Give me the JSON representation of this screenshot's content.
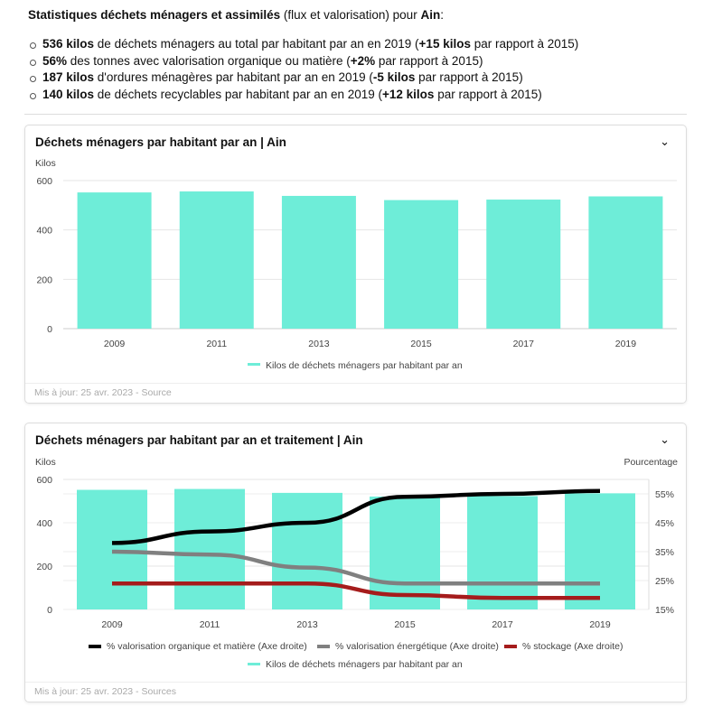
{
  "intro": {
    "bold1": "Statistiques déchets ménagers et assimilés",
    "rest": " (flux et valorisation) pour ",
    "place": "Ain",
    "colon": ":"
  },
  "bullets": [
    {
      "b1": "536 kilos",
      "t1": " de déchets ménagers au total par habitant par an en 2019 (",
      "b2": "+15 kilos",
      "t2": " par rapport à 2015)"
    },
    {
      "b1": "56%",
      "t1": " des tonnes avec valorisation organique ou matière (",
      "b2": "+2%",
      "t2": " par rapport à 2015)"
    },
    {
      "b1": "187 kilos",
      "t1": " d'ordures ménagères par habitant par an en 2019 (",
      "b2": "-5 kilos",
      "t2": " par rapport à 2015)"
    },
    {
      "b1": "140 kilos",
      "t1": " de déchets recyclables par habitant par an en 2019 (",
      "b2": "+12 kilos",
      "t2": " par rapport à 2015)"
    }
  ],
  "card1": {
    "title": "Déchets ménagers par habitant par an | Ain",
    "footer": "Mis à jour: 25 avr. 2023 - Source"
  },
  "card2": {
    "title": "Déchets ménagers par habitant par an et traitement | Ain",
    "footer": "Mis à jour: 25 avr. 2023 - Sources"
  },
  "chart_data": [
    {
      "type": "bar",
      "ylabel": "Kilos",
      "ylim": [
        0,
        600
      ],
      "yticks": [
        0,
        200,
        400,
        600
      ],
      "grid": true,
      "legend": "bottom",
      "categories": [
        "2009",
        "2011",
        "2013",
        "2015",
        "2017",
        "2019"
      ],
      "series": [
        {
          "name": "Kilos de déchets ménagers par habitant par an",
          "color": "#6eedd8",
          "values": [
            552,
            556,
            538,
            521,
            523,
            536
          ]
        }
      ]
    },
    {
      "type": "bar+line",
      "ylabel": "Kilos",
      "y2label": "Pourcentage",
      "ylim": [
        0,
        600
      ],
      "yticks": [
        0,
        200,
        400,
        600
      ],
      "y2lim": [
        15,
        60
      ],
      "y2ticks": [
        "15%",
        "25%",
        "35%",
        "45%",
        "55%"
      ],
      "grid": true,
      "legend": "bottom",
      "categories": [
        "2009",
        "2011",
        "2013",
        "2015",
        "2017",
        "2019"
      ],
      "bars": {
        "name": "Kilos de déchets ménagers par habitant par an",
        "color": "#6eedd8",
        "values": [
          552,
          556,
          538,
          521,
          523,
          536
        ]
      },
      "lines": [
        {
          "name": "% valorisation organique et matière (Axe droite)",
          "color": "#000000",
          "values": [
            38,
            42,
            45,
            54,
            55,
            56
          ]
        },
        {
          "name": "% valorisation énergétique (Axe droite)",
          "color": "#808080",
          "values": [
            35,
            34,
            29.5,
            24,
            24,
            24
          ]
        },
        {
          "name": "% stockage (Axe droite)",
          "color": "#a51c1c",
          "values": [
            24,
            24,
            24,
            20,
            19,
            19
          ]
        }
      ]
    }
  ]
}
